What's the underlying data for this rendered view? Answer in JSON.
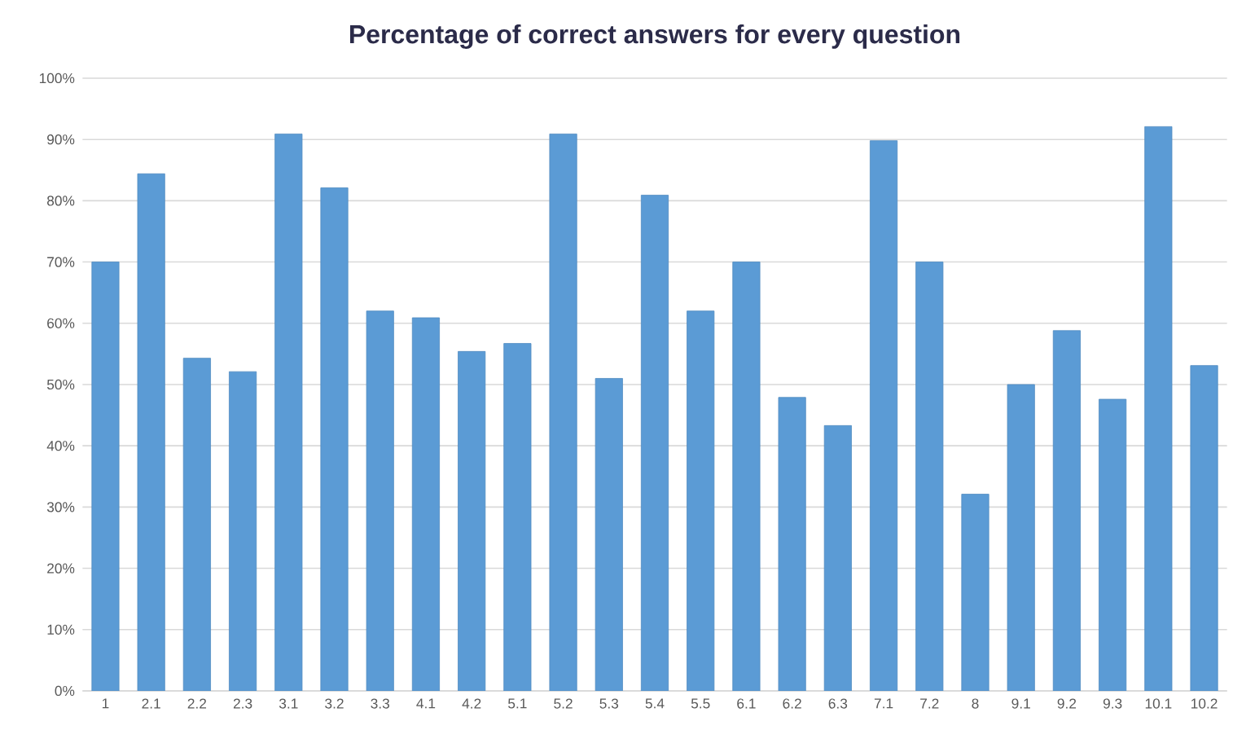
{
  "chart_data": {
    "type": "bar",
    "title": "Percentage of correct answers for every question",
    "categories": [
      "1",
      "2.1",
      "2.2",
      "2.3",
      "3.1",
      "3.2",
      "3.3",
      "4.1",
      "4.2",
      "5.1",
      "5.2",
      "5.3",
      "5.4",
      "5.5",
      "6.1",
      "6.2",
      "6.3",
      "7.1",
      "7.2",
      "8",
      "9.1",
      "9.2",
      "9.3",
      "10.1",
      "10.2"
    ],
    "values": [
      70,
      84.4,
      54.3,
      52.1,
      90.9,
      82.1,
      62,
      60.9,
      55.4,
      56.7,
      90.9,
      51,
      80.9,
      62,
      70,
      47.9,
      43.3,
      89.8,
      70,
      32.1,
      50,
      58.8,
      47.6,
      92.1,
      53.1
    ],
    "color": "#5b9bd5",
    "ylim": [
      0,
      100
    ],
    "yticks": [
      {
        "value": 0,
        "label": "0%"
      },
      {
        "value": 10,
        "label": "10%"
      },
      {
        "value": 20,
        "label": "20%"
      },
      {
        "value": 30,
        "label": "30%"
      },
      {
        "value": 40,
        "label": "40%"
      },
      {
        "value": 50,
        "label": "50%"
      },
      {
        "value": 60,
        "label": "60%"
      },
      {
        "value": 70,
        "label": "70%"
      },
      {
        "value": 80,
        "label": "80%"
      },
      {
        "value": 90,
        "label": "90%"
      },
      {
        "value": 100,
        "label": "100%"
      }
    ],
    "grid": "y"
  }
}
